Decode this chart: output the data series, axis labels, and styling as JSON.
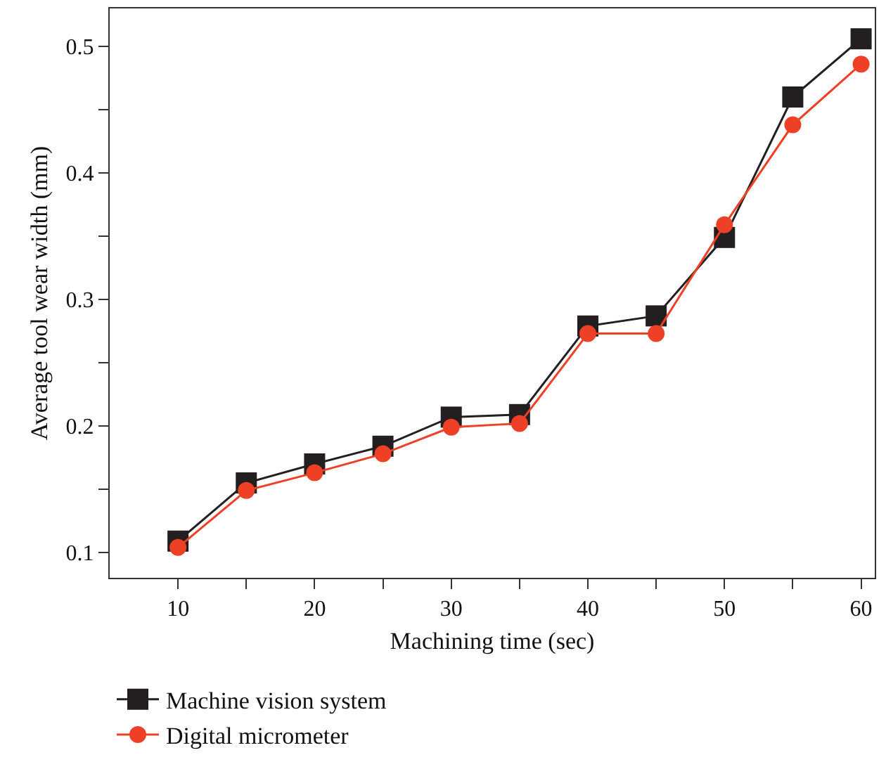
{
  "chart_data": {
    "type": "line",
    "xlabel": "Machining time (sec)",
    "ylabel": "Average tool wear width (mm)",
    "x": [
      10,
      15,
      20,
      25,
      30,
      35,
      40,
      45,
      50,
      55,
      60
    ],
    "series": [
      {
        "name": "Machine vision system",
        "color": "#231f20",
        "marker": "square",
        "values": [
          0.109,
          0.155,
          0.17,
          0.184,
          0.207,
          0.209,
          0.279,
          0.287,
          0.349,
          0.46,
          0.506
        ]
      },
      {
        "name": "Digital micrometer",
        "color": "#ee4027",
        "marker": "circle",
        "values": [
          0.104,
          0.149,
          0.163,
          0.178,
          0.199,
          0.202,
          0.273,
          0.273,
          0.359,
          0.438,
          0.486
        ]
      }
    ],
    "xlim": [
      5,
      61
    ],
    "ylim": [
      0.08,
      0.53
    ],
    "xticks": [
      10,
      {
        "value": 15,
        "label": null
      },
      20,
      {
        "value": 25,
        "label": null
      },
      30,
      {
        "value": 35,
        "label": null
      },
      40,
      {
        "value": 45,
        "label": null
      },
      50,
      {
        "value": 55,
        "label": null
      },
      60
    ],
    "yticks": [
      0.1,
      {
        "value": 0.15,
        "label": null
      },
      0.2,
      {
        "value": 0.25,
        "label": null
      },
      0.3,
      {
        "value": 0.35,
        "label": null
      },
      0.4,
      {
        "value": 0.45,
        "label": null
      },
      0.5
    ],
    "grid": false,
    "legend": "bottom",
    "line_style": "solid"
  }
}
